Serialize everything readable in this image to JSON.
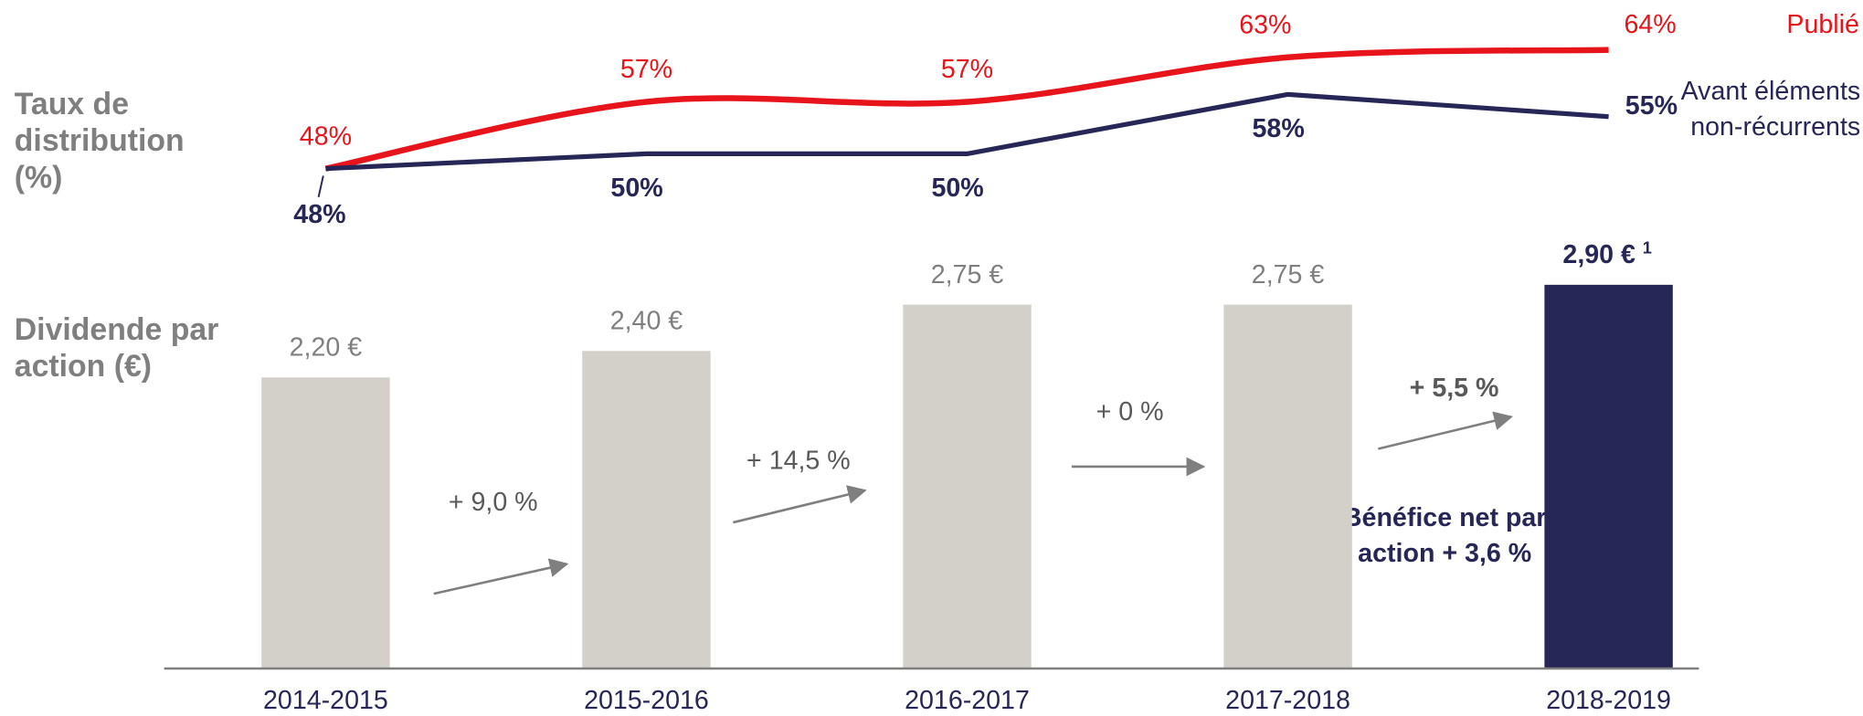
{
  "chart_data": [
    {
      "type": "line",
      "title": "Taux de distribution (%)",
      "ylim": [
        40,
        70
      ],
      "series": [
        {
          "name": "Publié",
          "color": "#e8141b",
          "smooth": true,
          "values": [
            48,
            57,
            57,
            63,
            64
          ],
          "value_labels": [
            "48%",
            "57%",
            "57%",
            "63%",
            "64%"
          ]
        },
        {
          "name": "Avant éléments non-récurrents",
          "color": "#272757",
          "smooth": false,
          "values": [
            48,
            50,
            50,
            58,
            55
          ],
          "value_labels": [
            "48%",
            "50%",
            "50%",
            "58%",
            "55%"
          ]
        }
      ]
    },
    {
      "type": "bar",
      "title": "Dividende par action (€)",
      "categories": [
        "2014-2015",
        "2015-2016",
        "2016-2017",
        "2017-2018",
        "2018-2019"
      ],
      "ylim": [
        0,
        3.5
      ],
      "values": [
        2.2,
        2.4,
        2.75,
        2.75,
        2.9
      ],
      "value_labels": [
        "2,20 €",
        "2,40 €",
        "2,75 €",
        "2,75 €",
        "2,90 €"
      ],
      "colors": [
        "#d3d0c9",
        "#d3d0c9",
        "#d3d0c9",
        "#d3d0c9",
        "#272757"
      ],
      "growth_labels": [
        "+ 9,0 %",
        "+ 14,5 %",
        "+ 0 %",
        "+ 5,5 %"
      ],
      "note": "Bénéfice net par action + 3,6 %",
      "footnote": "1"
    }
  ]
}
